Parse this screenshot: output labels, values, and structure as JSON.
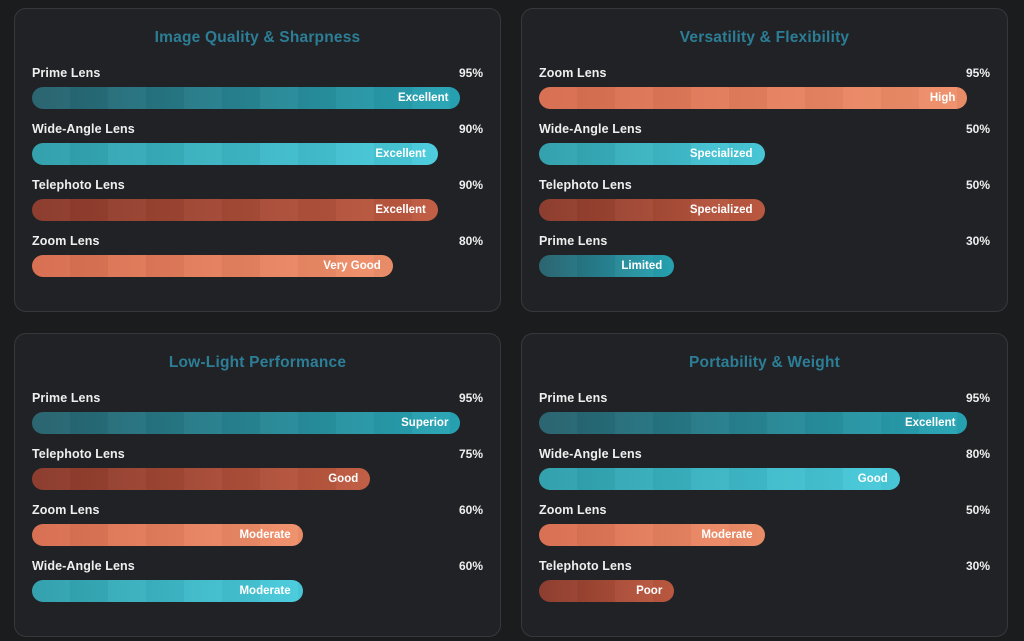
{
  "page": {
    "background": "#1b1c1e",
    "card_background": "#212225",
    "card_border": "#36383b",
    "title_color": "#2c7e97",
    "text_color": "#eef0f0",
    "bar_label_color": "#ffffff"
  },
  "palette": {
    "prime": [
      "#26616d",
      "#27a6b6"
    ],
    "wide": [
      "#2f9fab",
      "#4accdd"
    ],
    "tele": [
      "#8a392a",
      "#c05b42"
    ],
    "zoom": [
      "#d76d4f",
      "#f0906b"
    ]
  },
  "chart_data": [
    {
      "type": "bar",
      "orientation": "horizontal",
      "title": "Image Quality & Sharpness",
      "xlim": [
        0,
        100
      ],
      "grid": false,
      "bars": [
        {
          "label": "Prime Lens",
          "value": 95,
          "value_label": "95%",
          "rating": "Excellent",
          "color_key": "prime"
        },
        {
          "label": "Wide-Angle Lens",
          "value": 90,
          "value_label": "90%",
          "rating": "Excellent",
          "color_key": "wide"
        },
        {
          "label": "Telephoto Lens",
          "value": 90,
          "value_label": "90%",
          "rating": "Excellent",
          "color_key": "tele"
        },
        {
          "label": "Zoom Lens",
          "value": 80,
          "value_label": "80%",
          "rating": "Very Good",
          "color_key": "zoom"
        }
      ]
    },
    {
      "type": "bar",
      "orientation": "horizontal",
      "title": "Versatility & Flexibility",
      "xlim": [
        0,
        100
      ],
      "grid": false,
      "bars": [
        {
          "label": "Zoom Lens",
          "value": 95,
          "value_label": "95%",
          "rating": "High",
          "color_key": "zoom"
        },
        {
          "label": "Wide-Angle Lens",
          "value": 50,
          "value_label": "50%",
          "rating": "Specialized",
          "color_key": "wide"
        },
        {
          "label": "Telephoto Lens",
          "value": 50,
          "value_label": "50%",
          "rating": "Specialized",
          "color_key": "tele"
        },
        {
          "label": "Prime Lens",
          "value": 30,
          "value_label": "30%",
          "rating": "Limited",
          "color_key": "prime"
        }
      ]
    },
    {
      "type": "bar",
      "orientation": "horizontal",
      "title": "Low-Light Performance",
      "xlim": [
        0,
        100
      ],
      "grid": false,
      "bars": [
        {
          "label": "Prime Lens",
          "value": 95,
          "value_label": "95%",
          "rating": "Superior",
          "color_key": "prime"
        },
        {
          "label": "Telephoto Lens",
          "value": 75,
          "value_label": "75%",
          "rating": "Good",
          "color_key": "tele"
        },
        {
          "label": "Zoom Lens",
          "value": 60,
          "value_label": "60%",
          "rating": "Moderate",
          "color_key": "zoom"
        },
        {
          "label": "Wide-Angle Lens",
          "value": 60,
          "value_label": "60%",
          "rating": "Moderate",
          "color_key": "wide"
        }
      ]
    },
    {
      "type": "bar",
      "orientation": "horizontal",
      "title": "Portability & Weight",
      "xlim": [
        0,
        100
      ],
      "grid": false,
      "bars": [
        {
          "label": "Prime Lens",
          "value": 95,
          "value_label": "95%",
          "rating": "Excellent",
          "color_key": "prime"
        },
        {
          "label": "Wide-Angle Lens",
          "value": 80,
          "value_label": "80%",
          "rating": "Good",
          "color_key": "wide"
        },
        {
          "label": "Zoom Lens",
          "value": 50,
          "value_label": "50%",
          "rating": "Moderate",
          "color_key": "zoom"
        },
        {
          "label": "Telephoto Lens",
          "value": 30,
          "value_label": "30%",
          "rating": "Poor",
          "color_key": "tele"
        }
      ]
    }
  ]
}
